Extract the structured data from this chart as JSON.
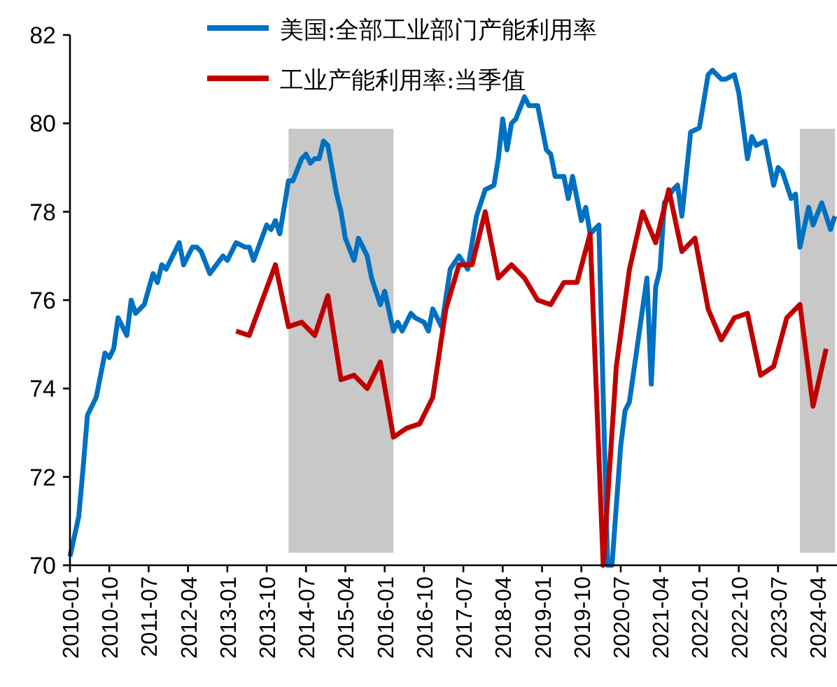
{
  "chart_data": {
    "type": "line",
    "legend": "top",
    "xlim": [
      "2010-01",
      "2024-08"
    ],
    "ylim": [
      70,
      82
    ],
    "yticks": [
      70,
      72,
      74,
      76,
      78,
      80,
      82
    ],
    "xticks": [
      "2010-01",
      "2010-10",
      "2011-07",
      "2012-04",
      "2013-01",
      "2013-10",
      "2014-07",
      "2015-04",
      "2016-01",
      "2016-10",
      "2017-07",
      "2018-04",
      "2019-01",
      "2019-10",
      "2020-07",
      "2021-04",
      "2022-01",
      "2022-10",
      "2023-07",
      "2024-04"
    ],
    "bands": [
      {
        "axis": "x",
        "from": "2014-03",
        "to": "2016-03",
        "color": "#c8c8c8"
      },
      {
        "axis": "x",
        "from": "2023-12",
        "to": "2024-08",
        "color": "#c8c8c8"
      }
    ],
    "series": [
      {
        "name": "美国:全部工业部门产能利用率",
        "color": "#0070c0",
        "x": [
          "2010-01",
          "2010-03",
          "2010-04",
          "2010-05",
          "2010-07",
          "2010-09",
          "2010-10",
          "2010-11",
          "2010-12",
          "2011-02",
          "2011-03",
          "2011-04",
          "2011-06",
          "2011-08",
          "2011-09",
          "2011-10",
          "2011-11",
          "2012-02",
          "2012-03",
          "2012-05",
          "2012-06",
          "2012-07",
          "2012-09",
          "2012-12",
          "2013-01",
          "2013-03",
          "2013-05",
          "2013-06",
          "2013-07",
          "2013-10",
          "2013-11",
          "2013-12",
          "2014-01",
          "2014-03",
          "2014-04",
          "2014-06",
          "2014-07",
          "2014-08",
          "2014-09",
          "2014-10",
          "2014-11",
          "2014-12",
          "2015-02",
          "2015-03",
          "2015-04",
          "2015-06",
          "2015-07",
          "2015-09",
          "2015-10",
          "2015-12",
          "2016-01",
          "2016-03",
          "2016-04",
          "2016-05",
          "2016-07",
          "2016-08",
          "2016-10",
          "2016-11",
          "2016-12",
          "2017-02",
          "2017-04",
          "2017-06",
          "2017-08",
          "2017-10",
          "2017-12",
          "2018-02",
          "2018-03",
          "2018-04",
          "2018-05",
          "2018-06",
          "2018-07",
          "2018-09",
          "2018-10",
          "2018-12",
          "2019-02",
          "2019-03",
          "2019-04",
          "2019-06",
          "2019-07",
          "2019-08",
          "2019-10",
          "2019-11",
          "2019-12",
          "2020-02",
          "2020-03",
          "2020-04",
          "2020-05",
          "2020-07",
          "2020-08",
          "2020-09",
          "2020-10",
          "2020-11",
          "2021-01",
          "2021-02",
          "2021-03",
          "2021-04",
          "2021-05",
          "2021-07",
          "2021-08",
          "2021-09",
          "2021-11",
          "2022-01",
          "2022-03",
          "2022-04",
          "2022-06",
          "2022-07",
          "2022-09",
          "2022-10",
          "2022-12",
          "2023-01",
          "2023-02",
          "2023-04",
          "2023-06",
          "2023-07",
          "2023-08",
          "2023-10",
          "2023-11",
          "2023-12",
          "2024-02",
          "2024-03",
          "2024-05",
          "2024-07",
          "2024-08"
        ],
        "values": [
          70.2,
          71.1,
          72.2,
          73.4,
          73.8,
          74.8,
          74.7,
          74.9,
          75.6,
          75.2,
          76.0,
          75.7,
          75.9,
          76.6,
          76.4,
          76.8,
          76.7,
          77.3,
          76.8,
          77.2,
          77.2,
          77.1,
          76.6,
          77.0,
          76.9,
          77.3,
          77.2,
          77.2,
          76.9,
          77.7,
          77.6,
          77.8,
          77.5,
          78.7,
          78.7,
          79.2,
          79.3,
          79.1,
          79.2,
          79.2,
          79.6,
          79.5,
          78.4,
          78.0,
          77.4,
          76.9,
          77.4,
          77.0,
          76.5,
          75.9,
          76.2,
          75.3,
          75.5,
          75.3,
          75.7,
          75.6,
          75.5,
          75.3,
          75.8,
          75.4,
          76.7,
          77.0,
          76.7,
          77.9,
          78.5,
          78.6,
          79.2,
          80.1,
          79.4,
          80.0,
          80.1,
          80.6,
          80.4,
          80.4,
          79.4,
          79.3,
          78.8,
          78.8,
          78.3,
          78.8,
          77.8,
          78.1,
          77.5,
          77.7,
          73.8,
          70,
          70,
          72.7,
          73.5,
          73.7,
          74.4,
          75.1,
          76.5,
          74.1,
          76.3,
          76.7,
          78.2,
          78.5,
          78.6,
          77.9,
          79.8,
          79.9,
          81.1,
          81.2,
          81.0,
          81.0,
          81.1,
          80.7,
          79.2,
          79.7,
          79.5,
          79.6,
          78.6,
          79.0,
          78.9,
          78.3,
          78.4,
          77.2,
          78.1,
          77.7,
          78.2,
          77.6,
          77.9
        ]
      },
      {
        "name": "工业产能利用率:当季值",
        "color": "#c00000",
        "x": [
          "2013-03",
          "2013-06",
          "2013-09",
          "2013-12",
          "2014-03",
          "2014-06",
          "2014-09",
          "2014-12",
          "2015-03",
          "2015-06",
          "2015-09",
          "2015-12",
          "2016-03",
          "2016-06",
          "2016-09",
          "2016-12",
          "2017-03",
          "2017-06",
          "2017-09",
          "2017-12",
          "2018-03",
          "2018-06",
          "2018-09",
          "2018-12",
          "2019-03",
          "2019-06",
          "2019-09",
          "2019-12",
          "2020-03",
          "2020-06",
          "2020-09",
          "2020-12",
          "2021-03",
          "2021-06",
          "2021-09",
          "2021-12",
          "2022-03",
          "2022-06",
          "2022-09",
          "2022-12",
          "2023-03",
          "2023-06",
          "2023-09",
          "2023-12",
          "2024-03",
          "2024-06"
        ],
        "values": [
          75.3,
          75.2,
          76.0,
          76.8,
          75.4,
          75.5,
          75.2,
          76.1,
          74.2,
          74.3,
          74.0,
          74.6,
          72.9,
          73.1,
          73.2,
          73.8,
          75.8,
          76.8,
          76.8,
          78.0,
          76.5,
          76.8,
          76.5,
          76.0,
          75.9,
          76.4,
          76.4,
          77.5,
          70,
          74.5,
          76.7,
          78.0,
          77.3,
          78.5,
          77.1,
          77.4,
          75.8,
          75.1,
          75.6,
          75.7,
          74.3,
          74.5,
          75.6,
          75.9,
          73.6,
          74.9
        ]
      }
    ]
  }
}
